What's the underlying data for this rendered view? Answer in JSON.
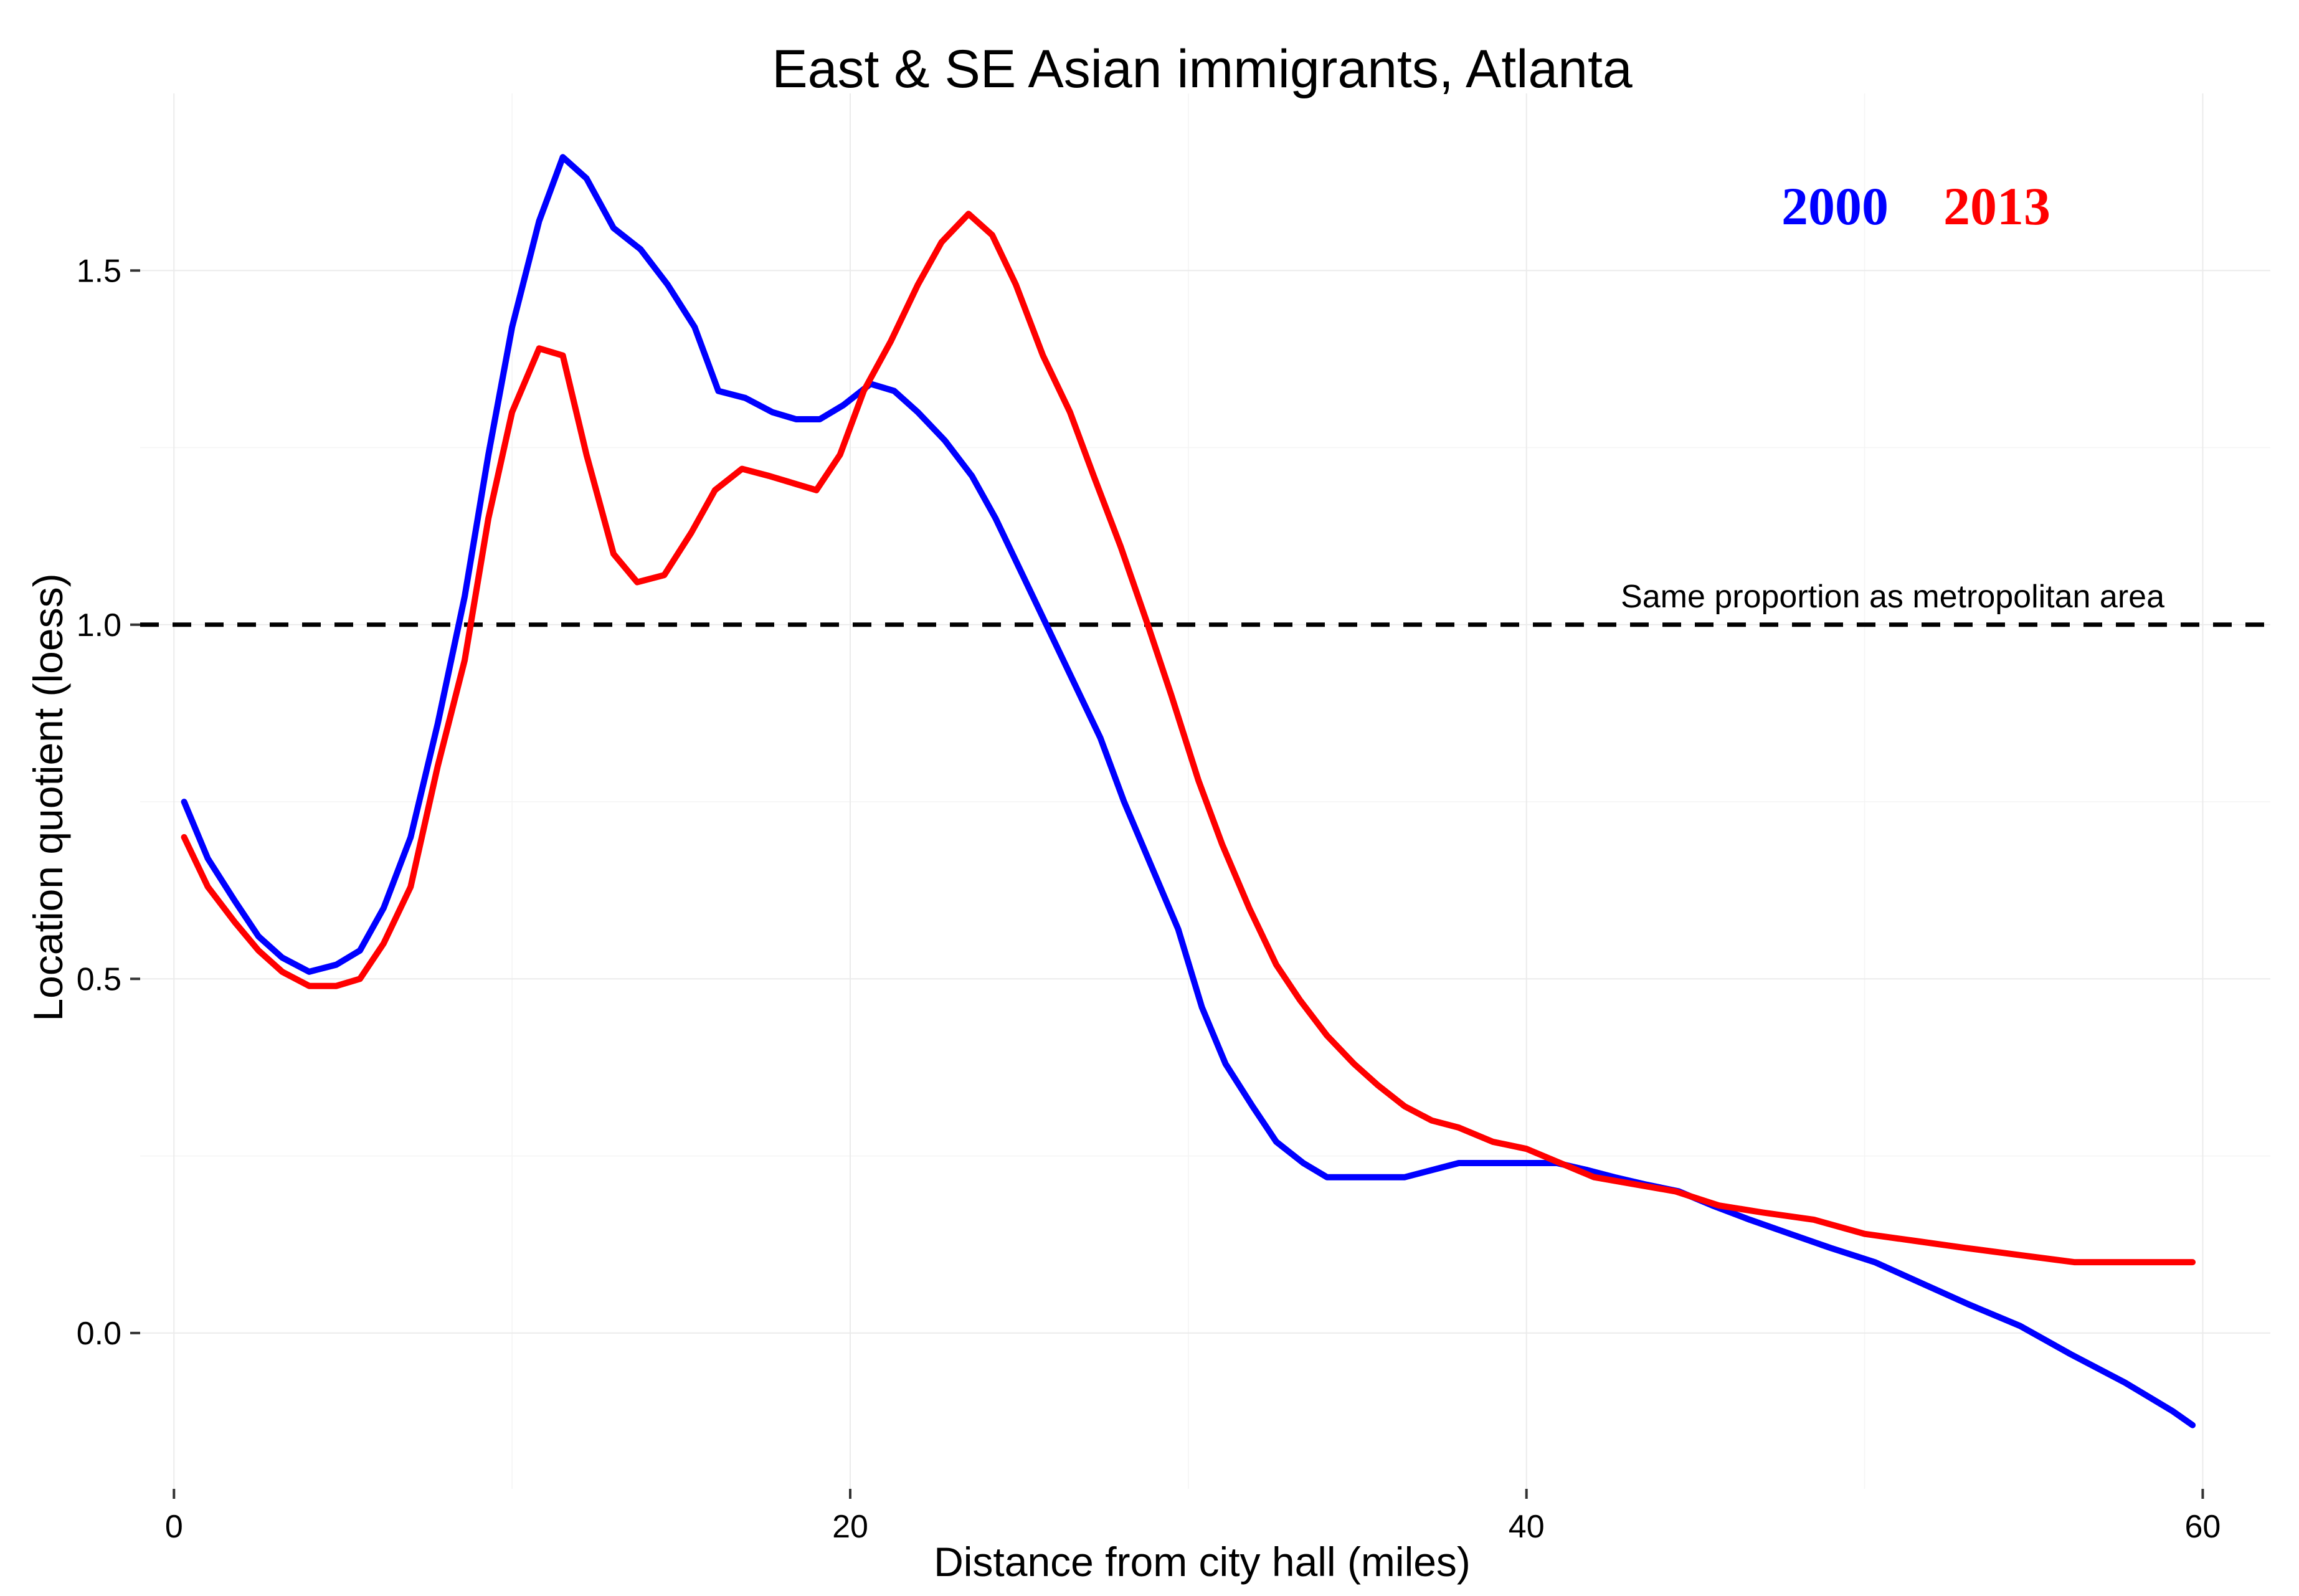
{
  "chart_data": {
    "type": "line",
    "title": "East & SE Asian immigrants, Atlanta",
    "xlabel": "Distance from city hall (miles)",
    "ylabel": "Location quotient (loess)",
    "xlim": [
      -1,
      62
    ],
    "ylim": [
      -0.22,
      1.75
    ],
    "x_ticks": [
      0,
      20,
      40,
      60
    ],
    "x_tick_labels": [
      "0",
      "20",
      "40",
      "60"
    ],
    "y_ticks": [
      0.0,
      0.5,
      1.0,
      1.5
    ],
    "y_tick_labels": [
      "0.0",
      "0.5",
      "1.0",
      "1.5"
    ],
    "grid": true,
    "legend_placement": "top-right",
    "reference_line": {
      "y": 1.0,
      "style": "dashed",
      "label": "Same proportion as metropolitan area"
    },
    "series": [
      {
        "name": "2000",
        "color": "#0000ff",
        "x": [
          0.3,
          1.0,
          1.8,
          2.5,
          3.2,
          4.0,
          4.8,
          5.5,
          6.2,
          7.0,
          7.8,
          8.6,
          9.3,
          10.0,
          10.8,
          11.5,
          12.2,
          13.0,
          13.8,
          14.6,
          15.4,
          16.1,
          16.9,
          17.7,
          18.4,
          19.1,
          19.8,
          20.6,
          21.3,
          22.0,
          22.8,
          23.6,
          24.3,
          25.1,
          25.8,
          26.6,
          27.4,
          28.1,
          28.9,
          29.7,
          30.4,
          31.1,
          31.9,
          32.6,
          33.4,
          34.1,
          34.9,
          35.7,
          36.4,
          37.2,
          38.0,
          38.7,
          39.5,
          40.2,
          40.9,
          41.8,
          42.6,
          43.5,
          44.5,
          45.5,
          46.6,
          47.8,
          49.0,
          50.3,
          51.7,
          53.1,
          54.6,
          56.1,
          57.7,
          59.1,
          59.7
        ],
        "y": [
          0.75,
          0.67,
          0.61,
          0.56,
          0.53,
          0.51,
          0.52,
          0.54,
          0.6,
          0.7,
          0.86,
          1.04,
          1.24,
          1.42,
          1.57,
          1.66,
          1.63,
          1.56,
          1.53,
          1.48,
          1.42,
          1.33,
          1.32,
          1.3,
          1.29,
          1.29,
          1.31,
          1.34,
          1.33,
          1.3,
          1.26,
          1.21,
          1.15,
          1.07,
          1.0,
          0.92,
          0.84,
          0.75,
          0.66,
          0.57,
          0.46,
          0.38,
          0.32,
          0.27,
          0.24,
          0.22,
          0.22,
          0.22,
          0.22,
          0.23,
          0.24,
          0.24,
          0.24,
          0.24,
          0.24,
          0.23,
          0.22,
          0.21,
          0.2,
          0.18,
          0.16,
          0.14,
          0.12,
          0.1,
          0.07,
          0.04,
          0.01,
          -0.03,
          -0.07,
          -0.11,
          -0.13
        ]
      },
      {
        "name": "2013",
        "color": "#ff0000",
        "x": [
          0.3,
          1.0,
          1.8,
          2.5,
          3.2,
          4.0,
          4.8,
          5.5,
          6.2,
          7.0,
          7.8,
          8.6,
          9.3,
          10.0,
          10.8,
          11.5,
          12.2,
          13.0,
          13.7,
          14.5,
          15.3,
          16.0,
          16.8,
          17.6,
          18.3,
          19.0,
          19.7,
          20.4,
          21.2,
          22.0,
          22.7,
          23.5,
          24.2,
          24.9,
          25.7,
          26.5,
          27.2,
          28.0,
          28.8,
          29.5,
          30.3,
          31.0,
          31.8,
          32.6,
          33.3,
          34.1,
          34.9,
          35.6,
          36.4,
          37.2,
          38.0,
          39.0,
          40.0,
          41.0,
          42.0,
          43.2,
          44.4,
          45.7,
          47.0,
          48.5,
          50.0,
          51.5,
          53.0,
          54.6,
          56.2,
          57.8,
          59.0,
          59.7
        ],
        "y": [
          0.7,
          0.63,
          0.58,
          0.54,
          0.51,
          0.49,
          0.49,
          0.5,
          0.55,
          0.63,
          0.8,
          0.95,
          1.15,
          1.3,
          1.39,
          1.38,
          1.24,
          1.1,
          1.06,
          1.07,
          1.13,
          1.19,
          1.22,
          1.21,
          1.2,
          1.19,
          1.24,
          1.33,
          1.4,
          1.48,
          1.54,
          1.58,
          1.55,
          1.48,
          1.38,
          1.3,
          1.21,
          1.11,
          1.0,
          0.9,
          0.78,
          0.69,
          0.6,
          0.52,
          0.47,
          0.42,
          0.38,
          0.35,
          0.32,
          0.3,
          0.29,
          0.27,
          0.26,
          0.24,
          0.22,
          0.21,
          0.2,
          0.18,
          0.17,
          0.16,
          0.14,
          0.13,
          0.12,
          0.11,
          0.1,
          0.1,
          0.1,
          0.1
        ]
      }
    ]
  }
}
